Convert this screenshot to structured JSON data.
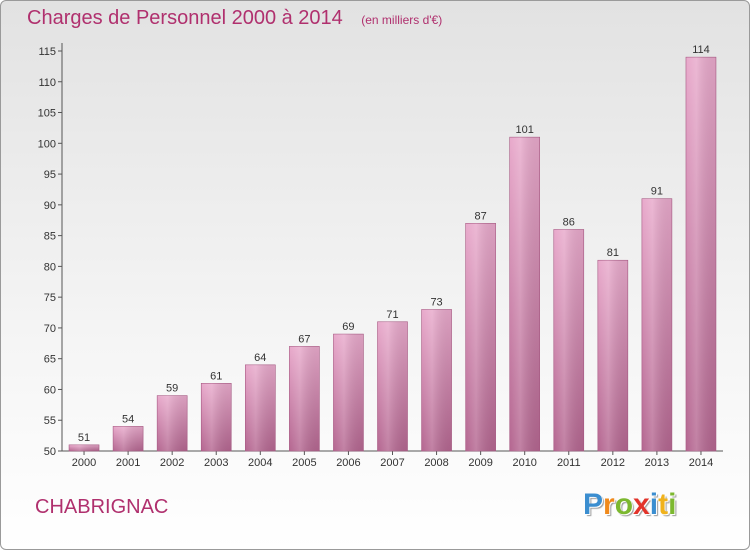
{
  "chart_data": {
    "type": "bar",
    "title": "Charges de Personnel 2000 à 2014",
    "subtitle": "(en milliers d'€)",
    "categories": [
      "2000",
      "2001",
      "2002",
      "2003",
      "2004",
      "2005",
      "2006",
      "2007",
      "2008",
      "2009",
      "2010",
      "2011",
      "2012",
      "2013",
      "2014"
    ],
    "values": [
      51,
      54,
      59,
      61,
      64,
      67,
      69,
      71,
      73,
      87,
      101,
      86,
      81,
      91,
      114
    ],
    "ylim": [
      50,
      115
    ],
    "yticks": [
      50,
      55,
      60,
      65,
      70,
      75,
      80,
      85,
      90,
      95,
      100,
      105,
      110,
      115
    ],
    "grid": false,
    "bar_color": "#c8709e",
    "xlabel": "",
    "ylabel": ""
  },
  "commune": "CHABRIGNAC",
  "brand": {
    "letters": [
      "P",
      "r",
      "o",
      "x",
      "i",
      "t",
      "i"
    ],
    "colors": [
      "#3b8ed0",
      "#f08a1c",
      "#7cb82f",
      "#e2332a",
      "#3b8ed0",
      "#f0b21c",
      "#7cb82f"
    ]
  }
}
